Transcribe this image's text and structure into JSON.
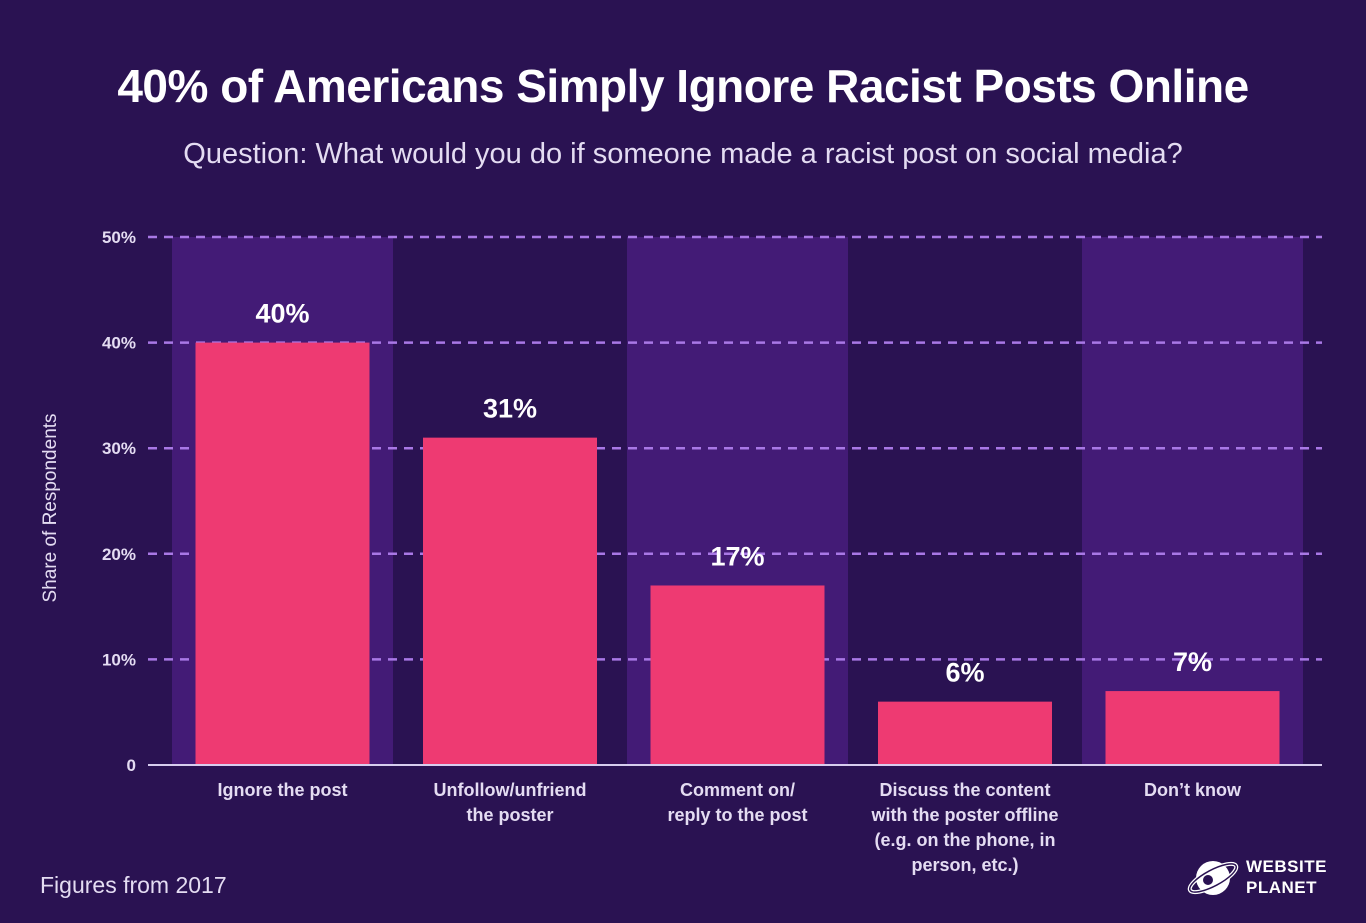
{
  "title": "40% of Americans Simply Ignore Racist Posts Online",
  "subtitle": "Question: What would you do if someone made a racist post on social media?",
  "footnote": "Figures from 2017",
  "brand": {
    "line1": "WEBSITE",
    "line2": "PLANET",
    "icon": "planet-logo-icon"
  },
  "colors": {
    "background": "#2a1252",
    "band": "#431b76",
    "bar": "#ee3a72",
    "grid": "#a978e6",
    "text": "#ffffff",
    "axis_text": "#e4dcf2"
  },
  "chart_data": {
    "type": "bar",
    "ylabel": "Share of Respondents",
    "xlabel": "",
    "ylim": [
      0,
      50
    ],
    "yticks": [
      0,
      10,
      20,
      30,
      40,
      50
    ],
    "ytick_labels": [
      "0",
      "10%",
      "20%",
      "30%",
      "40%",
      "50%"
    ],
    "grid": true,
    "categories": [
      [
        "Ignore the post"
      ],
      [
        "Unfollow/unfriend",
        "the poster"
      ],
      [
        "Comment on/",
        "reply to the post"
      ],
      [
        "Discuss the content",
        "with the poster offline",
        "(e.g. on the phone, in",
        "person, etc.)"
      ],
      [
        "Don’t know"
      ]
    ],
    "values": [
      40,
      31,
      17,
      6,
      7
    ],
    "value_labels": [
      "40%",
      "31%",
      "17%",
      "6%",
      "7%"
    ],
    "alternating_bands": true
  }
}
